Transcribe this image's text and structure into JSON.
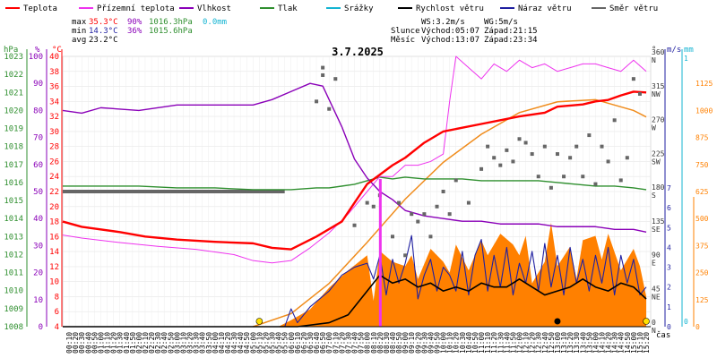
{
  "legend": [
    {
      "label": "Teplota",
      "color": "#ff0000"
    },
    {
      "label": "Přízemní teplota",
      "color": "#ee33ee"
    },
    {
      "label": "Vlhkost",
      "color": "#8a00b8"
    },
    {
      "label": "Tlak",
      "color": "#2f8f2f"
    },
    {
      "label": "Srážky",
      "color": "#14b4d2"
    },
    {
      "label": "Rychlost větru",
      "color": "#000000"
    },
    {
      "label": "Náraz větru",
      "color": "#1f1fa0"
    },
    {
      "label": "Směr větru",
      "color": "#666666"
    }
  ],
  "stats": {
    "max": {
      "label": "max",
      "temp": "35.3°C",
      "hum": "90%",
      "press": "1016.3hPa",
      "rain": "0.0mm"
    },
    "min": {
      "label": "min",
      "temp": "14.3°C",
      "hum": "36%",
      "press": "1015.6hPa"
    },
    "avg": {
      "label": "avg",
      "temp": "23.2°C"
    }
  },
  "wind_summary": {
    "ws": "WS:3.2m/s",
    "wg": "WG:5m/s"
  },
  "sun": {
    "label": "Slunce",
    "rise": "Východ:05:07",
    "set": "Západ:21:15"
  },
  "moon": {
    "label": "Měsíc",
    "rise": "Východ:13:07",
    "set": "Západ:23:34"
  },
  "axis_units": {
    "hpa": "hPa",
    "pct": "%",
    "degc": "°C",
    "deg": "°",
    "ms": "m/s",
    "mm": "mm",
    "time": "čas"
  },
  "chart_data": {
    "type": "line",
    "title": "3.7.2025",
    "x_ticks": [
      "00:10",
      "00:20",
      "00:30",
      "00:40",
      "00:50",
      "01:00",
      "01:10",
      "01:20",
      "01:30",
      "01:40",
      "01:50",
      "02:00",
      "02:10",
      "02:20",
      "02:30",
      "02:40",
      "02:50",
      "03:00",
      "03:10",
      "03:20",
      "03:30",
      "03:40",
      "03:50",
      "04:00",
      "04:10",
      "04:20",
      "04:30",
      "04:40",
      "04:50",
      "05:00",
      "05:10",
      "05:20",
      "05:30",
      "05:40",
      "05:50",
      "06:00",
      "06:10",
      "06:20",
      "06:30",
      "06:40",
      "06:50",
      "07:00",
      "07:10",
      "07:20",
      "07:30",
      "07:40",
      "07:50",
      "08:00",
      "08:10",
      "08:20",
      "08:30",
      "08:40",
      "08:50",
      "09:00",
      "09:10",
      "09:20",
      "09:30",
      "09:40",
      "09:50",
      "10:00",
      "10:10",
      "10:20",
      "10:30",
      "10:40",
      "10:50",
      "11:00",
      "11:10",
      "11:20",
      "11:30",
      "11:40",
      "11:50",
      "12:00",
      "12:10",
      "12:20",
      "12:30",
      "12:40",
      "12:50",
      "13:00",
      "13:10",
      "13:20",
      "13:30",
      "13:40",
      "13:50",
      "14:00",
      "14:10",
      "14:20",
      "14:30",
      "14:40",
      "14:50",
      "15:00",
      "15:10",
      "15:20"
    ],
    "axes": {
      "pressure_hpa": {
        "min": 1008,
        "max": 1023,
        "ticks": [
          1008,
          1009,
          1010,
          1011,
          1012,
          1013,
          1014,
          1015,
          1016,
          1017,
          1018,
          1019,
          1020,
          1021,
          1022,
          1023
        ]
      },
      "humidity_pct": {
        "min": 0,
        "max": 100,
        "ticks": [
          0,
          10,
          20,
          30,
          40,
          50,
          60,
          70,
          80,
          90,
          100
        ]
      },
      "temperature_c": {
        "min": 4,
        "max": 40,
        "ticks": [
          4,
          6,
          8,
          10,
          12,
          14,
          16,
          18,
          20,
          22,
          24,
          26,
          28,
          30,
          32,
          34,
          36,
          38,
          40
        ]
      },
      "wind_direction": {
        "ticks": [
          {
            "deg": 0,
            "dir": "N"
          },
          {
            "deg": 45,
            "dir": "NE"
          },
          {
            "deg": 90,
            "dir": "E"
          },
          {
            "deg": 135,
            "dir": "SE"
          },
          {
            "deg": 180,
            "dir": "S"
          },
          {
            "deg": 225,
            "dir": "SW"
          },
          {
            "deg": 270,
            "dir": "W"
          },
          {
            "deg": 315,
            "dir": "NW"
          },
          {
            "deg": 360,
            "dir": "N"
          }
        ]
      },
      "wind_speed_ms": {
        "min": 0,
        "max": 7,
        "ticks": [
          0,
          1,
          2,
          3,
          4,
          5,
          6,
          7
        ]
      },
      "rain_mm": {
        "min": 0,
        "max": 1,
        "ticks": [
          0,
          1
        ]
      },
      "solar": {
        "min": 0,
        "max": 1250,
        "ticks": [
          0,
          125,
          250,
          375,
          500,
          625,
          750,
          875,
          1000,
          1125
        ]
      }
    },
    "series": [
      {
        "name": "Teplota",
        "axis": "temperature_c",
        "color": "#ff0000",
        "x": [
          "00:00",
          "00:30",
          "01:30",
          "02:10",
          "03:00",
          "04:00",
          "05:00",
          "05:30",
          "06:00",
          "06:40",
          "07:20",
          "07:40",
          "08:00",
          "08:40",
          "09:00",
          "09:30",
          "10:00",
          "10:30",
          "11:00",
          "11:30",
          "12:00",
          "12:40",
          "13:00",
          "13:40",
          "14:00",
          "14:20",
          "14:40",
          "15:00",
          "15:20"
        ],
        "y": [
          18.0,
          17.3,
          16.6,
          16.0,
          15.6,
          15.3,
          15.1,
          14.5,
          14.3,
          16.0,
          18.0,
          20.5,
          23.0,
          25.5,
          26.5,
          28.5,
          30.0,
          30.5,
          31.0,
          31.5,
          32.0,
          32.5,
          33.3,
          33.6,
          34.0,
          34.2,
          34.8,
          35.3,
          35.2
        ]
      },
      {
        "name": "Přízemní teplota",
        "axis": "temperature_c",
        "color": "#ee33ee",
        "x": [
          "00:00",
          "00:30",
          "01:30",
          "02:30",
          "03:30",
          "04:30",
          "05:00",
          "05:30",
          "06:00",
          "06:30",
          "07:00",
          "07:30",
          "08:00",
          "08:20",
          "08:40",
          "09:00",
          "09:20",
          "09:40",
          "10:00",
          "10:10",
          "10:20",
          "10:40",
          "11:00",
          "11:20",
          "11:40",
          "12:00",
          "12:20",
          "12:40",
          "13:00",
          "13:20",
          "13:40",
          "14:00",
          "14:20",
          "14:40",
          "15:00",
          "15:20"
        ],
        "y": [
          16.2,
          15.8,
          15.2,
          14.7,
          14.3,
          13.6,
          12.8,
          12.5,
          12.8,
          14.5,
          16.5,
          19.0,
          22.0,
          24.0,
          24.0,
          25.5,
          25.5,
          26.0,
          27.0,
          34.0,
          40.0,
          38.5,
          37.0,
          39.0,
          38.0,
          39.5,
          38.5,
          39.0,
          38.0,
          38.5,
          39.0,
          39.0,
          38.5,
          38.0,
          39.5,
          38.0
        ]
      },
      {
        "name": "Vlhkost",
        "axis": "humidity_pct",
        "color": "#8a00b8",
        "x": [
          "00:00",
          "00:30",
          "01:00",
          "02:00",
          "03:00",
          "04:00",
          "05:00",
          "05:30",
          "06:00",
          "06:30",
          "06:50",
          "07:20",
          "07:40",
          "08:00",
          "08:20",
          "08:40",
          "09:00",
          "09:30",
          "10:00",
          "10:30",
          "11:00",
          "11:30",
          "12:00",
          "12:30",
          "13:00",
          "13:30",
          "14:00",
          "14:30",
          "15:00",
          "15:20"
        ],
        "y": [
          80,
          79,
          81,
          80,
          82,
          82,
          82,
          84,
          87,
          90,
          89,
          74,
          62,
          55,
          50,
          47,
          43,
          41,
          40,
          39,
          39,
          38,
          38,
          38,
          37,
          37,
          37,
          36,
          36,
          35
        ]
      },
      {
        "name": "Tlak",
        "axis": "pressure_hpa",
        "color": "#2f8f2f",
        "x": [
          "00:00",
          "01:00",
          "02:00",
          "03:00",
          "04:00",
          "05:00",
          "06:00",
          "06:40",
          "07:00",
          "07:40",
          "08:00",
          "08:20",
          "08:40",
          "09:00",
          "09:30",
          "10:00",
          "10:30",
          "11:00",
          "11:30",
          "12:00",
          "12:30",
          "13:00",
          "13:30",
          "14:00",
          "14:30",
          "15:00",
          "15:20"
        ],
        "y": [
          1015.8,
          1015.8,
          1015.8,
          1015.7,
          1015.7,
          1015.6,
          1015.6,
          1015.7,
          1015.7,
          1015.9,
          1016.1,
          1016.3,
          1016.2,
          1016.3,
          1016.2,
          1016.2,
          1016.2,
          1016.1,
          1016.1,
          1016.1,
          1016.1,
          1016.0,
          1015.9,
          1015.8,
          1015.8,
          1015.7,
          1015.6
        ]
      },
      {
        "name": "Srážky",
        "axis": "rain_mm",
        "color": "#14b4d2",
        "x": [
          "00:00",
          "15:20"
        ],
        "y": [
          0.0,
          0.0
        ]
      },
      {
        "name": "Rychlost větru",
        "axis": "wind_speed_ms",
        "color": "#000000",
        "x": [
          "00:00",
          "06:10",
          "07:00",
          "07:30",
          "08:00",
          "08:20",
          "08:40",
          "09:00",
          "09:20",
          "09:40",
          "10:00",
          "10:20",
          "10:40",
          "11:00",
          "11:20",
          "11:40",
          "12:00",
          "12:20",
          "12:40",
          "13:00",
          "13:20",
          "13:40",
          "14:00",
          "14:20",
          "14:40",
          "15:00",
          "15:20"
        ],
        "y": [
          0,
          0,
          0.2,
          0.6,
          1.8,
          2.6,
          2.2,
          2.4,
          2.0,
          2.2,
          1.8,
          2.0,
          1.8,
          2.2,
          2.0,
          2.0,
          2.4,
          2.0,
          1.6,
          1.8,
          2.0,
          2.4,
          2.0,
          1.8,
          2.2,
          2.0,
          1.4
        ]
      },
      {
        "name": "Náraz větru",
        "axis": "wind_speed_ms",
        "color": "#1f1fa0",
        "x": [
          "00:00",
          "05:50",
          "06:00",
          "06:10",
          "06:30",
          "07:00",
          "07:20",
          "07:40",
          "08:00",
          "08:10",
          "08:20",
          "08:30",
          "08:40",
          "08:50",
          "09:00",
          "09:10",
          "09:20",
          "09:30",
          "09:40",
          "09:50",
          "10:00",
          "10:10",
          "10:20",
          "10:30",
          "10:40",
          "10:50",
          "11:00",
          "11:10",
          "11:20",
          "11:30",
          "11:40",
          "11:50",
          "12:00",
          "12:10",
          "12:20",
          "12:30",
          "12:40",
          "12:50",
          "13:00",
          "13:10",
          "13:20",
          "13:30",
          "13:40",
          "13:50",
          "14:00",
          "14:10",
          "14:20",
          "14:30",
          "14:40",
          "14:50",
          "15:00",
          "15:10",
          "15:20"
        ],
        "y": [
          0,
          0,
          0.9,
          0.2,
          1.0,
          1.8,
          2.6,
          3.0,
          3.2,
          2.4,
          3.6,
          1.6,
          3.4,
          2.2,
          3.2,
          4.6,
          1.4,
          2.6,
          3.4,
          1.8,
          3.0,
          2.6,
          1.8,
          3.8,
          1.6,
          3.6,
          4.4,
          1.8,
          3.6,
          2.0,
          4.0,
          1.6,
          3.2,
          2.2,
          3.8,
          1.8,
          4.2,
          2.0,
          3.6,
          1.6,
          4.0,
          2.2,
          3.4,
          1.8,
          3.6,
          2.2,
          4.0,
          1.6,
          3.6,
          2.2,
          3.4,
          1.6,
          2.0
        ]
      },
      {
        "name": "Směr větru",
        "axis": "wind_direction",
        "color": "#666666",
        "x": [
          "06:40",
          "06:50",
          "06:50",
          "07:00",
          "07:10",
          "07:40",
          "08:00",
          "08:10",
          "08:20",
          "08:40",
          "08:50",
          "09:00",
          "09:10",
          "09:20",
          "09:30",
          "09:40",
          "09:50",
          "10:00",
          "10:10",
          "10:20",
          "10:40",
          "11:00",
          "11:10",
          "11:20",
          "11:30",
          "11:40",
          "11:50",
          "12:00",
          "12:10",
          "12:20",
          "12:30",
          "12:40",
          "12:50",
          "13:00",
          "13:10",
          "13:20",
          "13:30",
          "13:40",
          "13:50",
          "14:00",
          "14:10",
          "14:20",
          "14:30",
          "14:40",
          "14:50",
          "15:00",
          "15:10"
        ],
        "y": [
          300,
          345,
          335,
          290,
          330,
          135,
          165,
          160,
          175,
          120,
          165,
          95,
          150,
          140,
          150,
          120,
          160,
          180,
          150,
          195,
          165,
          210,
          240,
          225,
          215,
          235,
          220,
          250,
          245,
          230,
          200,
          240,
          185,
          230,
          200,
          225,
          240,
          200,
          255,
          190,
          240,
          220,
          275,
          195,
          225,
          330,
          310
        ]
      }
    ],
    "wind_direction_calm_band": {
      "from": "00:00",
      "to": "05:50",
      "deg": 180
    },
    "solar_radiation": {
      "axis": "solar",
      "color": "#ff8000",
      "x": [
        "00:00",
        "05:40",
        "06:00",
        "06:30",
        "07:00",
        "07:30",
        "08:00",
        "08:10",
        "08:20",
        "08:40",
        "09:00",
        "09:10",
        "09:20",
        "09:40",
        "10:00",
        "10:10",
        "10:20",
        "10:40",
        "11:00",
        "11:10",
        "11:30",
        "11:50",
        "12:00",
        "12:10",
        "12:20",
        "12:40",
        "12:50",
        "13:00",
        "13:20",
        "13:30",
        "13:40",
        "14:00",
        "14:10",
        "14:20",
        "14:40",
        "15:00",
        "15:10",
        "15:20"
      ],
      "y": [
        0,
        0,
        30,
        80,
        180,
        260,
        330,
        120,
        350,
        300,
        280,
        330,
        220,
        360,
        300,
        250,
        380,
        260,
        400,
        330,
        430,
        380,
        330,
        420,
        200,
        300,
        480,
        280,
        370,
        220,
        400,
        420,
        310,
        430,
        260,
        360,
        280,
        140
      ]
    },
    "max_solar_curve": {
      "axis": "solar",
      "color": "#f08c1c",
      "x": [
        "05:00",
        "06:00",
        "07:00",
        "08:00",
        "09:00",
        "10:00",
        "11:00",
        "12:00",
        "13:00",
        "14:00",
        "15:00",
        "15:20"
      ],
      "y": [
        0,
        60,
        200,
        390,
        590,
        760,
        890,
        990,
        1040,
        1050,
        1000,
        970
      ]
    },
    "markers": [
      {
        "time": "05:10",
        "kind": "sunrise",
        "color": "#ffe000"
      },
      {
        "time": "08:20",
        "kind": "event-line",
        "color": "#ee33ee"
      },
      {
        "time": "13:00",
        "kind": "moonrise",
        "color": "#000000"
      },
      {
        "time": "15:20",
        "kind": "now",
        "color": "#ffe000"
      }
    ]
  }
}
